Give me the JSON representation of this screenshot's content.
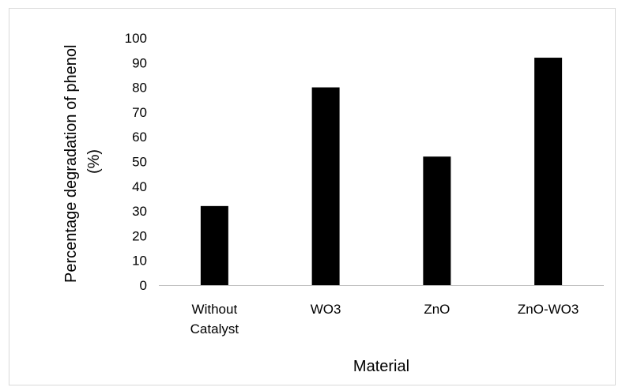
{
  "chart_data": {
    "type": "bar",
    "title": "",
    "xlabel": "Material",
    "ylabel": "Percentage degradation of phenol (%)",
    "ylabel_lines": [
      "Percentage degradation of phenol",
      "(%)"
    ],
    "categories": [
      "Without Catalyst",
      "WO3",
      "ZnO",
      "ZnO-WO3"
    ],
    "category_lines": [
      [
        "Without",
        "Catalyst"
      ],
      [
        "WO3"
      ],
      [
        "ZnO"
      ],
      [
        "ZnO-WO3"
      ]
    ],
    "values": [
      32,
      80,
      52,
      92
    ],
    "ylim": [
      0,
      100
    ],
    "yticks": [
      0,
      10,
      20,
      30,
      40,
      50,
      60,
      70,
      80,
      90,
      100
    ],
    "grid": false,
    "legend": "none",
    "bar_color": "#000000",
    "axis_color": "#bfbfbf"
  }
}
